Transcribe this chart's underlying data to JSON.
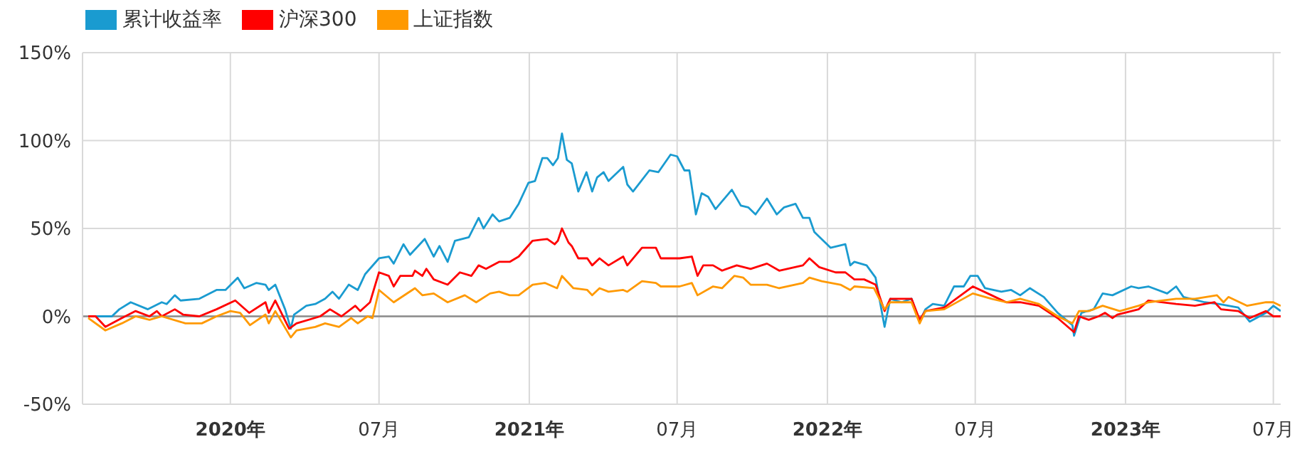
{
  "chart_data": {
    "type": "line",
    "legend": "top left",
    "grid": true,
    "marker": "none",
    "line_style": "solid",
    "xlim": [
      "2019-07-04",
      "2023-07-10"
    ],
    "xticks": [
      {
        "value": "2020-01-01",
        "label": "2020年"
      },
      {
        "value": "2020-07-01",
        "label": "07月"
      },
      {
        "value": "2021-01-01",
        "label": "2021年"
      },
      {
        "value": "2021-07-01",
        "label": "07月"
      },
      {
        "value": "2022-01-01",
        "label": "2022年"
      },
      {
        "value": "2022-07-01",
        "label": "07月"
      },
      {
        "value": "2023-01-01",
        "label": "2023年"
      },
      {
        "value": "2023-07-01",
        "label": "07月"
      }
    ],
    "ylim": [
      -50,
      150
    ],
    "yticks": [
      {
        "value": -50,
        "label": "-50%"
      },
      {
        "value": 0,
        "label": "0%"
      },
      {
        "value": 50,
        "label": "50%"
      },
      {
        "value": 100,
        "label": "100%"
      },
      {
        "value": 150,
        "label": "150%"
      }
    ],
    "ref_lines": [
      {
        "axis": "y",
        "value": 0,
        "color": "#8c8c8c"
      }
    ],
    "series": [
      {
        "name": "累计收益率",
        "color": "#1a9bd0",
        "x": [
          "2019-07-11",
          "2019-08-09",
          "2019-08-18",
          "2019-09-01",
          "2019-09-22",
          "2019-10-09",
          "2019-10-15",
          "2019-10-25",
          "2019-11-01",
          "2019-11-24",
          "2019-12-15",
          "2019-12-26",
          "2020-01-10",
          "2020-01-18",
          "2020-02-02",
          "2020-02-13",
          "2020-02-17",
          "2020-02-25",
          "2020-03-08",
          "2020-03-15",
          "2020-03-19",
          "2020-04-03",
          "2020-04-14",
          "2020-04-26",
          "2020-05-05",
          "2020-05-13",
          "2020-05-25",
          "2020-06-05",
          "2020-06-14",
          "2020-07-01",
          "2020-07-13",
          "2020-07-19",
          "2020-07-31",
          "2020-08-08",
          "2020-08-26",
          "2020-09-06",
          "2020-09-13",
          "2020-09-23",
          "2020-10-02",
          "2020-10-19",
          "2020-10-31",
          "2020-11-06",
          "2020-11-17",
          "2020-11-25",
          "2020-12-08",
          "2020-12-19",
          "2020-12-31",
          "2021-01-08",
          "2021-01-17",
          "2021-01-23",
          "2021-01-30",
          "2021-02-05",
          "2021-02-10",
          "2021-02-16",
          "2021-02-22",
          "2021-03-02",
          "2021-03-12",
          "2021-03-19",
          "2021-03-25",
          "2021-04-02",
          "2021-04-08",
          "2021-04-26",
          "2021-05-01",
          "2021-05-08",
          "2021-05-28",
          "2021-06-08",
          "2021-06-23",
          "2021-07-01",
          "2021-07-10",
          "2021-07-16",
          "2021-07-24",
          "2021-07-31",
          "2021-08-08",
          "2021-08-17",
          "2021-09-06",
          "2021-09-17",
          "2021-09-26",
          "2021-10-05",
          "2021-10-19",
          "2021-10-31",
          "2021-11-09",
          "2021-11-23",
          "2021-12-02",
          "2021-12-10",
          "2021-12-16",
          "2022-01-05",
          "2022-01-23",
          "2022-01-29",
          "2022-02-03",
          "2022-02-18",
          "2022-03-01",
          "2022-03-12",
          "2022-03-19",
          "2022-04-02",
          "2022-04-14",
          "2022-04-24",
          "2022-05-01",
          "2022-05-10",
          "2022-05-24",
          "2022-06-05",
          "2022-06-17",
          "2022-06-25",
          "2022-07-04",
          "2022-07-13",
          "2022-08-02",
          "2022-08-14",
          "2022-08-25",
          "2022-09-06",
          "2022-09-23",
          "2022-10-10",
          "2022-10-28",
          "2022-10-30",
          "2022-11-08",
          "2022-11-23",
          "2022-12-04",
          "2022-12-16",
          "2023-01-08",
          "2023-01-17",
          "2023-01-29",
          "2023-02-21",
          "2023-03-04",
          "2023-03-13",
          "2023-04-08",
          "2023-04-25",
          "2023-05-19",
          "2023-06-02",
          "2023-06-22",
          "2023-07-01",
          "2023-07-10"
        ],
        "values": [
          0,
          0,
          4,
          8,
          4,
          8,
          7,
          12,
          9,
          10,
          15,
          15,
          22,
          16,
          19,
          18,
          15,
          18,
          4,
          -7,
          1,
          6,
          7,
          10,
          14,
          10,
          18,
          15,
          24,
          33,
          34,
          30,
          41,
          35,
          44,
          34,
          40,
          31,
          43,
          45,
          56,
          50,
          58,
          54,
          56,
          64,
          76,
          77,
          90,
          90,
          86,
          90,
          104,
          89,
          87,
          71,
          82,
          71,
          79,
          82,
          77,
          85,
          75,
          71,
          83,
          82,
          92,
          91,
          83,
          83,
          58,
          70,
          68,
          61,
          72,
          63,
          62,
          58,
          67,
          58,
          62,
          64,
          56,
          56,
          48,
          39,
          41,
          29,
          31,
          29,
          22,
          -6,
          10,
          8,
          10,
          -3,
          4,
          7,
          6,
          17,
          17,
          23,
          23,
          16,
          14,
          15,
          12,
          16,
          11,
          2,
          -5,
          -11,
          2,
          4,
          13,
          12,
          17,
          16,
          17,
          13,
          17,
          11,
          8,
          7,
          5,
          -3,
          2,
          6,
          3
        ]
      },
      {
        "name": "沪深300",
        "color": "#ff0000",
        "x": [
          "2019-07-11",
          "2019-07-20",
          "2019-08-01",
          "2019-08-21",
          "2019-09-07",
          "2019-09-24",
          "2019-10-03",
          "2019-10-09",
          "2019-10-25",
          "2019-11-04",
          "2019-11-24",
          "2019-12-15",
          "2020-01-07",
          "2020-01-24",
          "2020-02-13",
          "2020-02-17",
          "2020-02-25",
          "2020-03-13",
          "2020-03-22",
          "2020-04-20",
          "2020-05-02",
          "2020-05-16",
          "2020-06-02",
          "2020-06-08",
          "2020-06-20",
          "2020-07-01",
          "2020-07-13",
          "2020-07-19",
          "2020-07-27",
          "2020-08-11",
          "2020-08-14",
          "2020-08-23",
          "2020-08-28",
          "2020-09-06",
          "2020-09-23",
          "2020-10-08",
          "2020-10-22",
          "2020-10-31",
          "2020-11-09",
          "2020-11-25",
          "2020-12-08",
          "2020-12-19",
          "2021-01-05",
          "2021-01-23",
          "2021-02-01",
          "2021-02-05",
          "2021-02-10",
          "2021-02-18",
          "2021-02-22",
          "2021-03-02",
          "2021-03-13",
          "2021-03-19",
          "2021-03-28",
          "2021-04-08",
          "2021-04-26",
          "2021-05-01",
          "2021-05-19",
          "2021-06-05",
          "2021-06-11",
          "2021-07-04",
          "2021-07-19",
          "2021-07-26",
          "2021-08-02",
          "2021-08-14",
          "2021-08-25",
          "2021-09-12",
          "2021-09-29",
          "2021-10-19",
          "2021-11-03",
          "2021-12-02",
          "2021-12-10",
          "2021-12-22",
          "2022-01-11",
          "2022-01-23",
          "2022-02-03",
          "2022-02-15",
          "2022-03-01",
          "2022-03-12",
          "2022-03-19",
          "2022-04-02",
          "2022-04-14",
          "2022-04-24",
          "2022-05-01",
          "2022-05-24",
          "2022-06-28",
          "2022-07-21",
          "2022-08-08",
          "2022-08-25",
          "2022-09-17",
          "2022-10-10",
          "2022-10-30",
          "2022-11-05",
          "2022-11-17",
          "2022-11-29",
          "2022-12-07",
          "2022-12-16",
          "2022-12-22",
          "2023-01-17",
          "2023-01-29",
          "2023-03-04",
          "2023-03-27",
          "2023-04-20",
          "2023-04-28",
          "2023-05-19",
          "2023-06-02",
          "2023-06-22",
          "2023-07-01",
          "2023-07-10"
        ],
        "values": [
          0,
          0,
          -6,
          -1,
          3,
          0,
          3,
          0,
          4,
          1,
          0,
          4,
          9,
          2,
          8,
          2,
          9,
          -7,
          -4,
          0,
          4,
          0,
          6,
          3,
          8,
          25,
          23,
          17,
          23,
          23,
          26,
          23,
          27,
          21,
          18,
          25,
          23,
          29,
          27,
          31,
          31,
          34,
          43,
          44,
          41,
          43,
          50,
          42,
          40,
          33,
          33,
          29,
          33,
          29,
          34,
          29,
          39,
          39,
          33,
          33,
          34,
          23,
          29,
          29,
          26,
          29,
          27,
          30,
          26,
          29,
          33,
          28,
          25,
          25,
          21,
          21,
          18,
          3,
          10,
          10,
          10,
          -2,
          3,
          5,
          17,
          12,
          8,
          8,
          6,
          -1,
          -9,
          0,
          -2,
          0,
          2,
          -1,
          1,
          4,
          9,
          7,
          6,
          8,
          4,
          3,
          -1,
          3,
          0,
          0
        ]
      },
      {
        "name": "上证指数",
        "color": "#ff9900",
        "x": [
          "2019-07-11",
          "2019-08-01",
          "2019-08-21",
          "2019-09-07",
          "2019-09-24",
          "2019-10-09",
          "2019-11-07",
          "2019-11-27",
          "2019-12-15",
          "2020-01-01",
          "2020-01-13",
          "2020-01-25",
          "2020-02-13",
          "2020-02-17",
          "2020-02-25",
          "2020-03-15",
          "2020-03-22",
          "2020-04-14",
          "2020-04-26",
          "2020-05-13",
          "2020-05-28",
          "2020-06-05",
          "2020-06-17",
          "2020-06-23",
          "2020-07-01",
          "2020-07-19",
          "2020-08-14",
          "2020-08-23",
          "2020-09-06",
          "2020-09-23",
          "2020-10-14",
          "2020-10-28",
          "2020-11-14",
          "2020-11-25",
          "2020-12-08",
          "2020-12-19",
          "2021-01-05",
          "2021-01-20",
          "2021-02-04",
          "2021-02-10",
          "2021-02-24",
          "2021-03-13",
          "2021-03-19",
          "2021-03-28",
          "2021-04-08",
          "2021-04-26",
          "2021-05-01",
          "2021-05-19",
          "2021-06-05",
          "2021-06-11",
          "2021-07-04",
          "2021-07-19",
          "2021-07-26",
          "2021-08-14",
          "2021-08-25",
          "2021-09-09",
          "2021-09-20",
          "2021-09-29",
          "2021-10-19",
          "2021-11-03",
          "2021-12-02",
          "2021-12-10",
          "2021-12-25",
          "2022-01-17",
          "2022-01-29",
          "2022-02-03",
          "2022-02-27",
          "2022-03-12",
          "2022-03-19",
          "2022-04-02",
          "2022-04-14",
          "2022-04-24",
          "2022-05-01",
          "2022-05-24",
          "2022-06-28",
          "2022-07-21",
          "2022-08-08",
          "2022-08-25",
          "2022-09-17",
          "2022-10-10",
          "2022-10-28",
          "2022-11-05",
          "2022-11-17",
          "2022-12-04",
          "2022-12-25",
          "2023-01-17",
          "2023-01-29",
          "2023-03-04",
          "2023-03-27",
          "2023-04-23",
          "2023-05-01",
          "2023-05-07",
          "2023-05-30",
          "2023-06-22",
          "2023-07-01",
          "2023-07-10"
        ],
        "values": [
          -1,
          -8,
          -4,
          0,
          -2,
          0,
          -4,
          -4,
          0,
          3,
          2,
          -5,
          1,
          -4,
          3,
          -12,
          -8,
          -6,
          -4,
          -6,
          -1,
          -4,
          0,
          -1,
          15,
          8,
          16,
          12,
          13,
          8,
          12,
          8,
          13,
          14,
          12,
          12,
          18,
          19,
          16,
          23,
          16,
          15,
          12,
          16,
          14,
          15,
          14,
          20,
          19,
          17,
          17,
          19,
          12,
          17,
          16,
          23,
          22,
          18,
          18,
          16,
          19,
          22,
          20,
          18,
          15,
          17,
          16,
          4,
          8,
          8,
          8,
          -4,
          3,
          4,
          13,
          10,
          8,
          10,
          7,
          0,
          -4,
          3,
          3,
          6,
          3,
          6,
          8,
          10,
          10,
          12,
          8,
          11,
          6,
          8,
          8,
          6
        ]
      }
    ]
  }
}
